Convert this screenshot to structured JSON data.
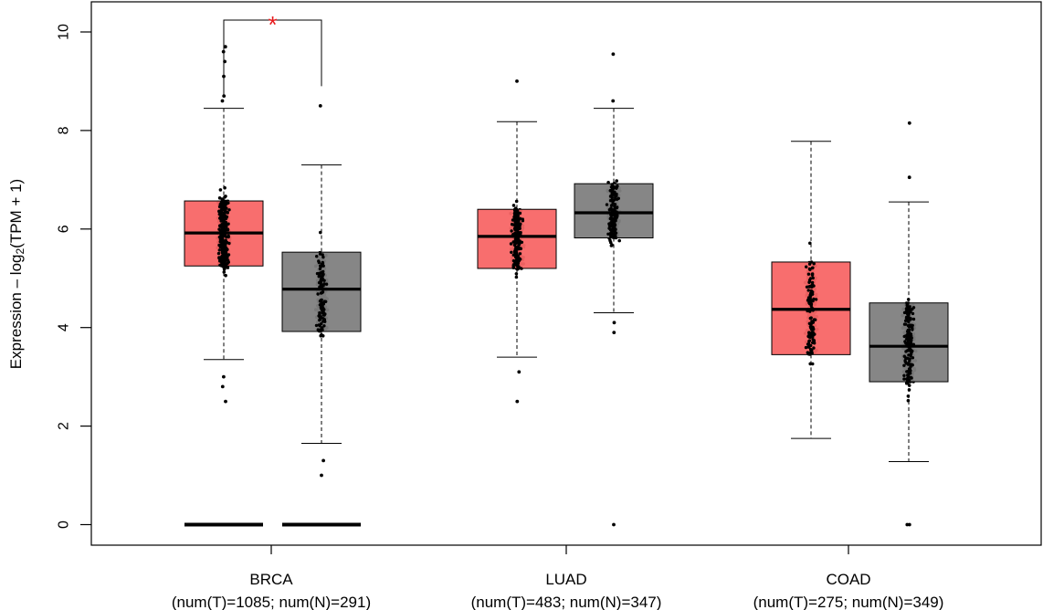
{
  "chart_data": {
    "type": "box",
    "ylabel_parts": {
      "prefix": "Expression – log",
      "subscript": "2",
      "suffix": "(TPM + 1)"
    },
    "ylim": [
      0,
      10
    ],
    "yticks": [
      "0",
      "2",
      "4",
      "6",
      "8",
      "10"
    ],
    "colors": {
      "tumor": "#F86666",
      "normal": "#808080"
    },
    "groups": [
      {
        "name": "BRCA",
        "counts_label": "(num(T)=1085; num(N)=291)",
        "tumor": {
          "whisker_low": 3.35,
          "q1": 5.25,
          "median": 5.92,
          "q3": 6.57,
          "whisker_high": 8.45,
          "extra_points": [
            9.7,
            9.6,
            9.4,
            9.1,
            8.6,
            8.7,
            3.0,
            2.8,
            2.5
          ],
          "zeros": true
        },
        "normal": {
          "whisker_low": 1.65,
          "q1": 3.92,
          "median": 4.78,
          "q3": 5.53,
          "whisker_high": 7.3,
          "extra_points": [
            8.5,
            1.3,
            1.0
          ],
          "zeros": true
        }
      },
      {
        "name": "LUAD",
        "counts_label": "(num(T)=483; num(N)=347)",
        "tumor": {
          "whisker_low": 3.4,
          "q1": 5.2,
          "median": 5.85,
          "q3": 6.4,
          "whisker_high": 8.18,
          "extra_points": [
            9.0,
            3.1,
            2.5
          ],
          "zeros": false
        },
        "normal": {
          "whisker_low": 4.3,
          "q1": 5.82,
          "median": 6.33,
          "q3": 6.92,
          "whisker_high": 8.45,
          "extra_points": [
            9.55,
            8.6,
            4.1,
            3.9,
            0.0
          ],
          "zeros": false
        }
      },
      {
        "name": "COAD",
        "counts_label": "(num(T)=275; num(N)=349)",
        "tumor": {
          "whisker_low": 1.75,
          "q1": 3.45,
          "median": 4.37,
          "q3": 5.33,
          "whisker_high": 7.78,
          "extra_points": [],
          "zeros": false
        },
        "normal": {
          "whisker_low": 1.28,
          "q1": 2.9,
          "median": 3.62,
          "q3": 4.5,
          "whisker_high": 6.55,
          "extra_points": [
            8.15,
            7.05,
            0.0,
            0.0
          ],
          "zeros": false
        }
      }
    ],
    "significance": {
      "group": "BRCA",
      "label": "*",
      "color": "#E8191B"
    }
  }
}
